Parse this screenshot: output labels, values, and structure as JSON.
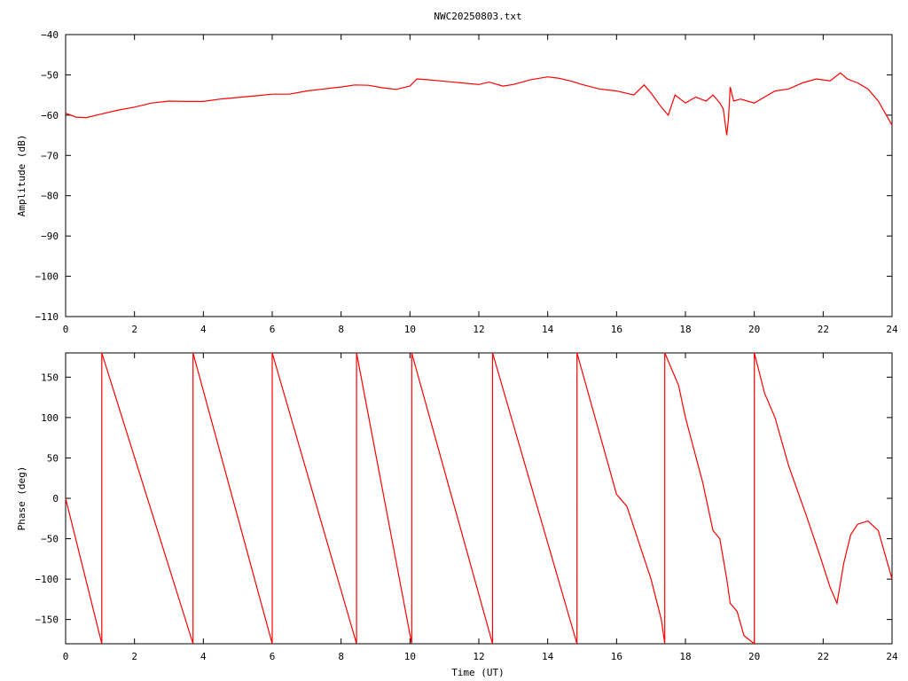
{
  "page": {
    "title": "NWC20250803.txt"
  },
  "chart_data": [
    {
      "type": "line",
      "title": "NWC20250803.txt",
      "xlabel": "",
      "ylabel": "Amplitude (dB)",
      "xlim": [
        0,
        24
      ],
      "ylim": [
        -110,
        -40
      ],
      "xticks": [
        "0",
        "2",
        "4",
        "6",
        "8",
        "10",
        "12",
        "14",
        "16",
        "18",
        "20",
        "22",
        "24"
      ],
      "yticks": [
        "-110",
        "-100",
        "-90",
        "-80",
        "-70",
        "-60",
        "-50",
        "-40"
      ],
      "grid": false,
      "line_color": "#ff0000",
      "series": [
        {
          "x": [
            0,
            0.3,
            0.6,
            1.0,
            1.5,
            2.0,
            2.5,
            3.0,
            3.5,
            4.0,
            4.5,
            5.0,
            5.5,
            6.0,
            6.5,
            7.0,
            7.5,
            8.0,
            8.4,
            8.8,
            9.2,
            9.6,
            10.0,
            10.2,
            10.5,
            11.0,
            11.5,
            12.0,
            12.3,
            12.7,
            13.0,
            13.5,
            14.0,
            14.3,
            14.7,
            15.0,
            15.5,
            16.0,
            16.5,
            16.8,
            17.0,
            17.3,
            17.5,
            17.7,
            18.0,
            18.3,
            18.6,
            18.8,
            19.0,
            19.1,
            19.2,
            19.25,
            19.3,
            19.4,
            19.6,
            19.8,
            20.0,
            20.3,
            20.6,
            21.0,
            21.4,
            21.8,
            22.2,
            22.5,
            22.7,
            23.0,
            23.3,
            23.6,
            24.0
          ],
          "y": [
            -59.5,
            -60.5,
            -60.6,
            -59.8,
            -58.8,
            -58.0,
            -57.0,
            -56.5,
            -56.6,
            -56.6,
            -56.0,
            -55.6,
            -55.2,
            -54.8,
            -54.8,
            -54.0,
            -53.5,
            -53.0,
            -52.5,
            -52.6,
            -53.2,
            -53.6,
            -52.8,
            -51.0,
            -51.2,
            -51.6,
            -52.0,
            -52.4,
            -51.8,
            -52.8,
            -52.4,
            -51.2,
            -50.5,
            -50.8,
            -51.6,
            -52.4,
            -53.5,
            -54.0,
            -55.0,
            -52.5,
            -54.5,
            -58.0,
            -60.0,
            -55.0,
            -57.0,
            -55.5,
            -56.5,
            -55.0,
            -57.0,
            -58.5,
            -65.0,
            -61.0,
            -53.0,
            -56.5,
            -56.0,
            -56.5,
            -57.0,
            -55.5,
            -54.0,
            -53.5,
            -52.0,
            -51.0,
            -51.5,
            -49.5,
            -51.0,
            -52.0,
            -53.5,
            -56.5,
            -62.5
          ]
        }
      ]
    },
    {
      "type": "line",
      "title": "",
      "xlabel": "Time (UT)",
      "ylabel": "Phase (deg)",
      "xlim": [
        0,
        24
      ],
      "ylim": [
        -180,
        180
      ],
      "xticks": [
        "0",
        "2",
        "4",
        "6",
        "8",
        "10",
        "12",
        "14",
        "16",
        "18",
        "20",
        "22",
        "24"
      ],
      "yticks": [
        "-150",
        "-100",
        "-50",
        "0",
        "50",
        "100",
        "150"
      ],
      "grid": false,
      "line_color": "#ff0000",
      "series": [
        {
          "x": [
            0,
            1.05,
            1.05,
            3.7,
            3.7,
            6.0,
            6.0,
            8.45,
            8.45,
            10.05,
            10.05,
            12.4,
            12.4,
            14.85,
            14.85,
            16.0,
            16.3,
            17.0,
            17.3,
            17.4,
            17.4,
            17.8,
            18.0,
            18.5,
            18.8,
            19.0,
            19.2,
            19.3,
            19.5,
            19.7,
            20.0,
            20.0,
            20.3,
            20.6,
            21.0,
            21.5,
            21.9,
            22.2,
            22.4,
            22.6,
            22.8,
            23.0,
            23.3,
            23.6,
            24.0
          ],
          "y": [
            0,
            -180,
            180,
            -180,
            180,
            -180,
            180,
            -180,
            180,
            -180,
            180,
            -180,
            180,
            -180,
            180,
            5,
            -10,
            -100,
            -150,
            -180,
            180,
            140,
            100,
            20,
            -40,
            -50,
            -100,
            -130,
            -140,
            -170,
            -180,
            180,
            130,
            100,
            40,
            -20,
            -70,
            -110,
            -130,
            -80,
            -45,
            -32,
            -28,
            -40,
            -100
          ]
        }
      ]
    }
  ]
}
